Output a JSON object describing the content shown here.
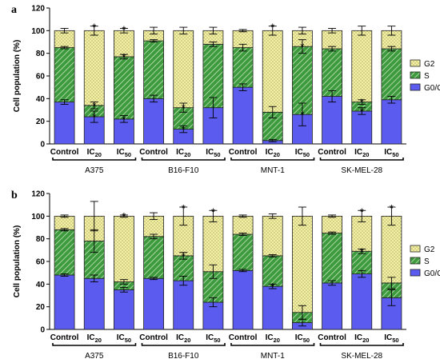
{
  "chart_data": [
    {
      "type": "bar",
      "stacked": true,
      "panel_label": "a",
      "ylabel": "Cell population (%)",
      "ylim": [
        0,
        120
      ],
      "yticks": [
        "0",
        "20",
        "40",
        "60",
        "80",
        "100",
        "120"
      ],
      "categories": [
        {
          "base": "Control",
          "sub": ""
        },
        {
          "base": "IC",
          "sub": "20"
        },
        {
          "base": "IC",
          "sub": "50"
        },
        {
          "base": "Control",
          "sub": ""
        },
        {
          "base": "IC",
          "sub": "20"
        },
        {
          "base": "IC",
          "sub": "50"
        },
        {
          "base": "Control",
          "sub": ""
        },
        {
          "base": "IC",
          "sub": "20"
        },
        {
          "base": "IC",
          "sub": "50"
        },
        {
          "base": "Control",
          "sub": ""
        },
        {
          "base": "IC",
          "sub": "20"
        },
        {
          "base": "IC",
          "sub": "50"
        }
      ],
      "groups": [
        "A375",
        "B16-F10",
        "MNT-1",
        "SK-MEL-28"
      ],
      "legend": [
        "G2",
        "S",
        "G0/G1"
      ],
      "colors": {
        "G0/G1": "#5b5bf0",
        "S": "#3d9a3d",
        "G2": "#f3f0a2"
      },
      "series": [
        {
          "name": "G0/G1",
          "values": [
            37,
            24,
            22,
            40,
            13,
            32,
            50,
            3,
            26,
            42,
            29,
            39
          ],
          "errors": [
            2,
            5,
            3,
            3,
            3,
            9,
            3,
            1,
            10,
            5,
            3,
            3
          ]
        },
        {
          "name": "S",
          "values": [
            48,
            10,
            55,
            51,
            19,
            56,
            35,
            25,
            60,
            42,
            8,
            45
          ],
          "errors": [
            1,
            3,
            2,
            1,
            4,
            2,
            3,
            5,
            6,
            2,
            2,
            2
          ]
        },
        {
          "name": "G2",
          "values": [
            15,
            66,
            23,
            9,
            68,
            12,
            15,
            72,
            14,
            16,
            63,
            16
          ],
          "errors": [
            2,
            4,
            2,
            3,
            3,
            3,
            1,
            4,
            3,
            2,
            4,
            4
          ]
        }
      ],
      "markers": {
        "G0/G1": [
          false,
          true,
          true,
          false,
          true,
          false,
          false,
          false,
          true,
          false,
          true,
          false
        ],
        "S": [
          false,
          true,
          true,
          false,
          true,
          false,
          false,
          false,
          true,
          false,
          true,
          false
        ],
        "G2": [
          false,
          true,
          true,
          false,
          false,
          false,
          false,
          true,
          false,
          false,
          false,
          false
        ]
      },
      "marker_symbol": "*"
    },
    {
      "type": "bar",
      "stacked": true,
      "panel_label": "b",
      "ylabel": "Cell population (%)",
      "ylim": [
        0,
        120
      ],
      "yticks": [
        "0",
        "20",
        "40",
        "60",
        "80",
        "100",
        "120"
      ],
      "categories": [
        {
          "base": "Control",
          "sub": ""
        },
        {
          "base": "IC",
          "sub": "20"
        },
        {
          "base": "IC",
          "sub": "50"
        },
        {
          "base": "Control",
          "sub": ""
        },
        {
          "base": "IC",
          "sub": "20"
        },
        {
          "base": "IC",
          "sub": "50"
        },
        {
          "base": "Control",
          "sub": ""
        },
        {
          "base": "IC",
          "sub": "20"
        },
        {
          "base": "IC",
          "sub": "50"
        },
        {
          "base": "Control",
          "sub": ""
        },
        {
          "base": "IC",
          "sub": "20"
        },
        {
          "base": "IC",
          "sub": "50"
        }
      ],
      "groups": [
        "A375",
        "B16-F10",
        "MNT-1",
        "SK-MEL-28"
      ],
      "legend": [
        "G2",
        "S",
        "G0/G1"
      ],
      "colors": {
        "G0/G1": "#5b5bf0",
        "S": "#3d9a3d",
        "G2": "#f3f0a2"
      },
      "series": [
        {
          "name": "G0/G1",
          "values": [
            48,
            45,
            35,
            45,
            43,
            24,
            52,
            38,
            6,
            41,
            49,
            28
          ],
          "errors": [
            1,
            3,
            2,
            1,
            4,
            4,
            1,
            2,
            3,
            2,
            3,
            7
          ]
        },
        {
          "name": "S",
          "values": [
            40,
            33,
            7,
            37,
            22,
            27,
            32,
            27,
            9,
            44,
            20,
            13
          ],
          "errors": [
            1,
            10,
            2,
            2,
            3,
            6,
            1,
            1,
            6,
            1,
            2,
            5
          ]
        },
        {
          "name": "G2",
          "values": [
            12,
            22,
            58,
            18,
            35,
            49,
            16,
            35,
            85,
            15,
            31,
            59
          ],
          "errors": [
            1,
            13,
            1,
            3,
            8,
            5,
            1,
            2,
            8,
            1,
            5,
            8
          ]
        }
      ],
      "markers": {
        "G0/G1": [
          false,
          false,
          false,
          false,
          false,
          false,
          false,
          true,
          false,
          false,
          false,
          false
        ],
        "S": [
          false,
          false,
          false,
          false,
          true,
          false,
          false,
          false,
          false,
          false,
          true,
          false
        ],
        "G2": [
          false,
          false,
          true,
          false,
          true,
          true,
          false,
          false,
          false,
          false,
          true,
          true
        ]
      },
      "marker_symbol": "*"
    }
  ]
}
